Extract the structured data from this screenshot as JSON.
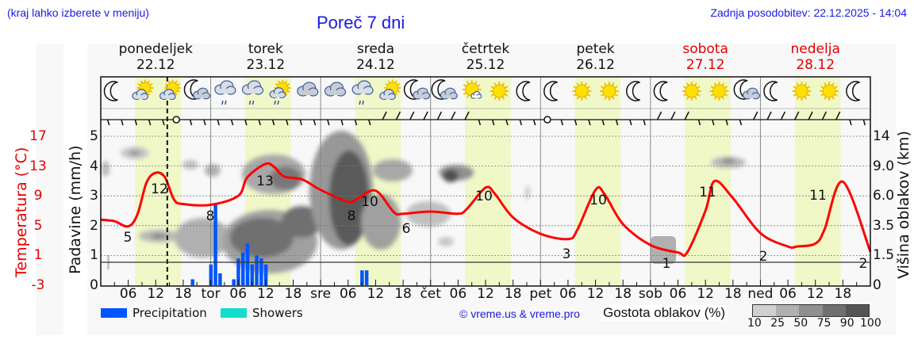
{
  "header": {
    "menu_hint": "(kraj lahko izberete v meniju)",
    "title": "Poreč 7 dni",
    "last_update": "Zadnja posodobitev: 22.12.2025 - 14:04"
  },
  "days": [
    {
      "name": "ponedeljek",
      "date": "22.12",
      "weekend": false,
      "short": ""
    },
    {
      "name": "torek",
      "date": "23.12",
      "weekend": false,
      "short": "tor"
    },
    {
      "name": "sreda",
      "date": "24.12",
      "weekend": false,
      "short": "sre"
    },
    {
      "name": "četrtek",
      "date": "25.12",
      "weekend": false,
      "short": "čet"
    },
    {
      "name": "petek",
      "date": "26.12",
      "weekend": false,
      "short": "pet"
    },
    {
      "name": "sobota",
      "date": "27.12",
      "weekend": true,
      "short": "sob"
    },
    {
      "name": "nedelja",
      "date": "28.12",
      "weekend": true,
      "short": "ned"
    }
  ],
  "hour_ticks": [
    "06",
    "12",
    "18"
  ],
  "weather_icons": [
    "moon",
    "sun-cloud",
    "sun-cloud",
    "moon-cloud",
    "cloud-rain",
    "cloud-rain",
    "sun-cloud-rain",
    "cloud",
    "cloud",
    "cloud-rain",
    "sun-cloud",
    "moon-cloud",
    "moon-cloud",
    "sun-small-cloud",
    "sun",
    "moon",
    "moon",
    "sun",
    "sun",
    "moon",
    "moon",
    "sun",
    "sun",
    "moon-cloud",
    "moon",
    "sun",
    "sun",
    "moon"
  ],
  "axes": {
    "left_temp_label": "Temperatura (°C)",
    "left_temp_ticks": [
      "17",
      "13",
      "9",
      "5",
      "1",
      "-3"
    ],
    "left_precip_label": "Padavine (mm/h)",
    "left_precip_ticks": [
      "5",
      "4",
      "3",
      "2",
      "1",
      "0"
    ],
    "right_label": "Višina oblakov (km)",
    "right_ticks": [
      "14",
      "9.0",
      "6.0",
      "3.5",
      "1.5",
      "0"
    ]
  },
  "legend": {
    "precipitation": "Precipitation",
    "showers": "Showers",
    "copyright": "© vreme.us & vreme.pro",
    "cloud_density_label": "Gostota oblakov (%)",
    "cloud_scale": [
      "10",
      "25",
      "50",
      "75",
      "90",
      "100"
    ]
  },
  "colors": {
    "temperature": "#ff0000",
    "precipitation": "#0055ff",
    "showers": "#11ddcc",
    "daylight": "#f0f8c8",
    "weekend_text": "#e60000",
    "link_blue": "#1a1ae6"
  },
  "chart_data": {
    "type": "line",
    "title": "Poreč 7 dni",
    "x_range_hours": [
      0,
      168
    ],
    "x_start": "22.12 00:00",
    "xlabel": "",
    "ylabel_left": "Temperatura (°C)",
    "ylabel_left2": "Padavine (mm/h)",
    "ylabel_right": "Višina oblakov (km)",
    "ylim_temp": [
      -3,
      17
    ],
    "ylim_precip": [
      0,
      5
    ],
    "grid": true,
    "series": [
      {
        "name": "Temperatura",
        "unit": "°C",
        "hours": [
          0,
          3,
          6,
          8,
          10,
          12,
          14,
          16,
          18,
          24,
          30,
          32,
          36,
          38,
          40,
          44,
          48,
          54,
          56,
          60,
          64,
          66,
          72,
          78,
          80,
          84,
          86,
          90,
          96,
          102,
          104,
          108,
          110,
          114,
          120,
          126,
          128,
          132,
          134,
          138,
          144,
          150,
          152,
          156,
          158,
          162,
          168
        ],
        "values": [
          5.8,
          5.6,
          4.9,
          6.5,
          10.8,
          12.1,
          11.5,
          8.5,
          7.9,
          7.8,
          9.0,
          11.5,
          13.3,
          12.8,
          11.6,
          11.2,
          9.8,
          8.2,
          8.6,
          9.7,
          6.8,
          6.6,
          6.9,
          6.6,
          7.3,
          10.1,
          9.3,
          6.1,
          3.9,
          3.2,
          4.4,
          9.8,
          9.2,
          5.2,
          2.4,
          1.4,
          1.4,
          7.0,
          11.0,
          8.7,
          4.0,
          2.2,
          2.2,
          2.6,
          4.5,
          10.9,
          1.5
        ]
      },
      {
        "name": "Precipitation",
        "unit": "mm/h",
        "hours": [
          20,
          24,
          25,
          26,
          29,
          30,
          31,
          32,
          33,
          34,
          35,
          36,
          57,
          58
        ],
        "values": [
          0.2,
          0.7,
          2.7,
          0.4,
          0.2,
          0.9,
          1.1,
          1.4,
          0.7,
          1.0,
          0.9,
          0.7,
          0.5,
          0.5
        ]
      },
      {
        "name": "Showers",
        "unit": "mm/h",
        "hours": [],
        "values": []
      }
    ],
    "temperature_labels": [
      {
        "hour": 5,
        "value": 5
      },
      {
        "hour": 12,
        "value": 12
      },
      {
        "hour": 22,
        "value": 8
      },
      {
        "hour": 36,
        "value": 13
      },
      {
        "hour": 52,
        "value": 8
      },
      {
        "hour": 56,
        "value": 10
      },
      {
        "hour": 66,
        "value": 6
      },
      {
        "hour": 78,
        "value": 10
      },
      {
        "hour": 100,
        "value": 3
      },
      {
        "hour": 102,
        "value": 10
      },
      {
        "hour": 122,
        "value": 1
      },
      {
        "hour": 126,
        "value": 11
      },
      {
        "hour": 144,
        "value": 2
      },
      {
        "hour": 150,
        "value": 11
      },
      {
        "hour": 168,
        "value": 2
      }
    ],
    "cloud_density_legend": [
      10,
      25,
      50,
      75,
      90,
      100
    ],
    "current_time_marker_hour": 14,
    "daylight_hours": [
      7.5,
      17.5
    ]
  }
}
